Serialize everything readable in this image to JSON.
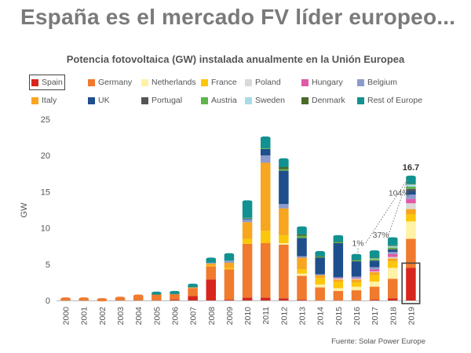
{
  "headline": "España es el mercado FV líder europeo...",
  "source": "Fuente: Solar Power Europe",
  "chart_data": {
    "type": "bar",
    "stacked": true,
    "title": "Potencia fotovoltaica (GW) instalada anualmente en la Unión Europea",
    "ylabel": "GW",
    "xlabel": "",
    "ylim": [
      0,
      25
    ],
    "yticks": [
      0,
      5,
      10,
      15,
      20,
      25
    ],
    "grid": false,
    "legend_position": "top",
    "categories": [
      "2000",
      "2001",
      "2002",
      "2003",
      "2004",
      "2005",
      "2006",
      "2007",
      "2008",
      "2009",
      "2010",
      "2011",
      "2012",
      "2013",
      "2014",
      "2015",
      "2016",
      "2017",
      "2018",
      "2019"
    ],
    "series": [
      {
        "name": "Spain",
        "color": "#d7261e",
        "values": [
          0,
          0,
          0,
          0,
          0,
          0,
          0.1,
          0.6,
          2.9,
          0.1,
          0.4,
          0.4,
          0.3,
          0.1,
          0,
          0,
          0,
          0.1,
          0.3,
          4.5
        ]
      },
      {
        "name": "Germany",
        "color": "#f07a2e",
        "values": [
          0.2,
          0.2,
          0.1,
          0.3,
          0.6,
          0.9,
          0.8,
          1.1,
          1.8,
          4.2,
          7.4,
          7.5,
          7.4,
          3.3,
          1.8,
          1.3,
          1.4,
          1.8,
          2.7,
          4.0
        ]
      },
      {
        "name": "Netherlands",
        "color": "#fff1a6",
        "values": [
          0,
          0,
          0,
          0,
          0,
          0,
          0,
          0,
          0,
          0,
          0,
          0,
          0.2,
          0.3,
          0.4,
          0.4,
          0.5,
          0.7,
          1.5,
          2.4
        ]
      },
      {
        "name": "France",
        "color": "#fcc60a",
        "values": [
          0,
          0,
          0,
          0,
          0,
          0,
          0,
          0,
          0.1,
          0.2,
          0.7,
          1.7,
          1.1,
          0.6,
          0.9,
          0.9,
          0.6,
          0.9,
          0.9,
          1.0
        ]
      },
      {
        "name": "Italy",
        "color": "#f8a520",
        "values": [
          0,
          0,
          0,
          0,
          0,
          0,
          0,
          0.1,
          0.3,
          0.7,
          2.3,
          9.4,
          3.7,
          1.6,
          0.4,
          0.3,
          0.4,
          0.4,
          0.4,
          0.7
        ]
      },
      {
        "name": "Poland",
        "color": "#d9d9d9",
        "values": [
          0,
          0,
          0,
          0,
          0,
          0,
          0,
          0,
          0,
          0,
          0,
          0,
          0,
          0,
          0,
          0.1,
          0.1,
          0.1,
          0.2,
          0.8
        ]
      },
      {
        "name": "Hungary",
        "color": "#e05aa6",
        "values": [
          0,
          0,
          0,
          0,
          0,
          0,
          0,
          0,
          0,
          0,
          0,
          0,
          0,
          0,
          0,
          0.1,
          0.1,
          0.3,
          0.4,
          0.6
        ]
      },
      {
        "name": "Belgium",
        "color": "#8c9bcb",
        "values": [
          0,
          0,
          0,
          0,
          0,
          0,
          0,
          0,
          0.1,
          0.3,
          0.4,
          1.0,
          0.6,
          0.2,
          0.1,
          0.1,
          0.2,
          0.3,
          0.3,
          0.6
        ]
      },
      {
        "name": "UK",
        "color": "#1f4e8c",
        "values": [
          0,
          0,
          0,
          0,
          0,
          0,
          0,
          0,
          0,
          0,
          0.1,
          0.9,
          4.6,
          2.5,
          2.3,
          4.7,
          2.1,
          0.9,
          0.3,
          0.5
        ]
      },
      {
        "name": "Portugal",
        "color": "#555555",
        "values": [
          0,
          0,
          0,
          0,
          0,
          0,
          0,
          0,
          0,
          0,
          0,
          0,
          0,
          0,
          0,
          0,
          0,
          0,
          0.1,
          0.3
        ]
      },
      {
        "name": "Austria",
        "color": "#5fb54b",
        "values": [
          0,
          0,
          0,
          0,
          0,
          0,
          0,
          0,
          0,
          0,
          0.1,
          0.1,
          0.2,
          0.3,
          0.1,
          0.1,
          0.1,
          0.2,
          0.2,
          0.3
        ]
      },
      {
        "name": "Sweden",
        "color": "#a7dbe8",
        "values": [
          0,
          0,
          0,
          0,
          0,
          0,
          0,
          0,
          0,
          0,
          0,
          0,
          0,
          0,
          0,
          0,
          0,
          0.1,
          0.2,
          0.3
        ]
      },
      {
        "name": "Denmark",
        "color": "#4a6a2a",
        "values": [
          0,
          0,
          0,
          0,
          0,
          0,
          0,
          0,
          0,
          0,
          0,
          0,
          0.3,
          0.2,
          0.1,
          0.1,
          0.1,
          0.1,
          0.1,
          0.1
        ]
      },
      {
        "name": "Rest of Europe",
        "color": "#129191",
        "values": [
          0,
          0,
          0,
          0,
          0,
          0.1,
          0.2,
          0.3,
          0.5,
          0.8,
          2.2,
          1.4,
          1.0,
          0.9,
          0.5,
          0.7,
          0.6,
          0.8,
          0.9,
          0.9
        ]
      }
    ],
    "annotations": [
      {
        "category": "2016",
        "text": "1%"
      },
      {
        "category": "2017",
        "text": "37%"
      },
      {
        "category": "2018",
        "text": "104%"
      },
      {
        "category": "2019",
        "text": "16.7"
      }
    ],
    "highlight": {
      "series": "Spain",
      "category": "2019"
    }
  }
}
